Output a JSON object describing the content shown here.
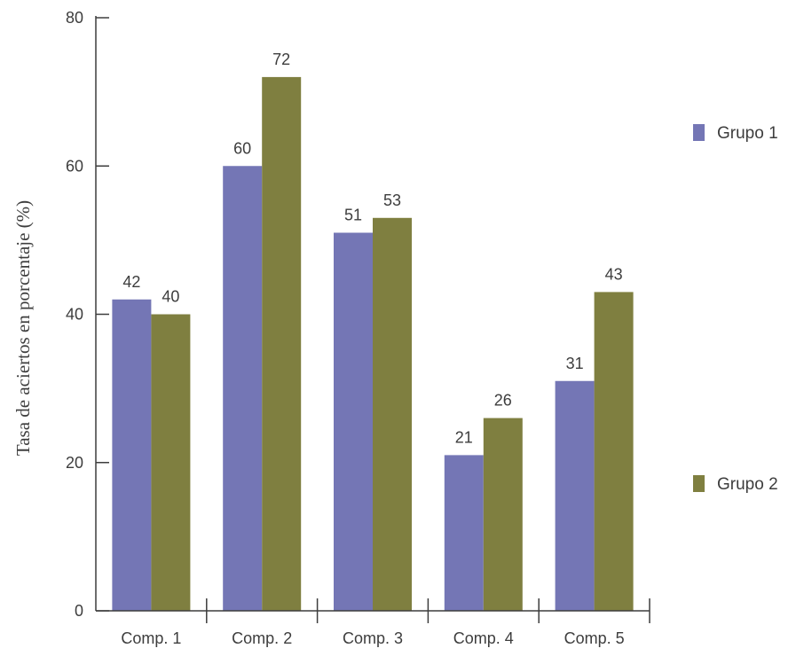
{
  "chart_data": {
    "type": "bar",
    "title": "",
    "xlabel": "",
    "ylabel": "Tasa de aciertos en porcentaje (%)",
    "categories": [
      "Comp. 1",
      "Comp. 2",
      "Comp. 3",
      "Comp. 4",
      "Comp. 5"
    ],
    "series": [
      {
        "name": "Grupo 1",
        "color": "#7476b5",
        "values": [
          42,
          60,
          51,
          21,
          31
        ]
      },
      {
        "name": "Grupo 2",
        "color": "#7f7f40",
        "values": [
          40,
          72,
          53,
          26,
          43
        ]
      }
    ],
    "ylim": [
      0,
      80
    ],
    "yticks": [
      0,
      20,
      40,
      60,
      80
    ],
    "grid": false,
    "data_labels": true,
    "legend_position": "right"
  }
}
